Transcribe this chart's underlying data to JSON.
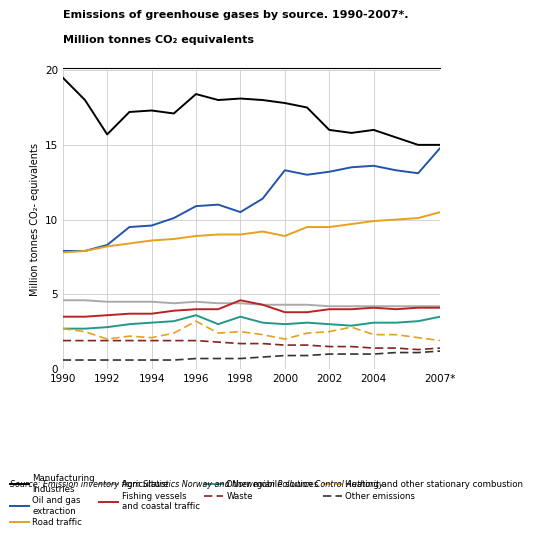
{
  "years": [
    1990,
    1991,
    1992,
    1993,
    1994,
    1995,
    1996,
    1997,
    1998,
    1999,
    2000,
    2001,
    2002,
    2003,
    2004,
    2005,
    2006,
    2007
  ],
  "manufacturing": [
    19.5,
    18.0,
    15.7,
    17.2,
    17.3,
    17.1,
    18.4,
    18.0,
    18.1,
    18.0,
    17.8,
    17.5,
    16.0,
    15.8,
    16.0,
    15.5,
    15.0,
    15.0
  ],
  "oil_gas": [
    7.9,
    7.9,
    8.3,
    9.5,
    9.6,
    10.1,
    10.9,
    11.0,
    10.5,
    11.4,
    13.3,
    13.0,
    13.2,
    13.5,
    13.6,
    13.3,
    13.1,
    14.8
  ],
  "road_traffic": [
    7.8,
    7.9,
    8.2,
    8.4,
    8.6,
    8.7,
    8.9,
    9.0,
    9.0,
    9.2,
    8.9,
    9.5,
    9.5,
    9.7,
    9.9,
    10.0,
    10.1,
    10.5
  ],
  "agriculture": [
    4.6,
    4.6,
    4.5,
    4.5,
    4.5,
    4.4,
    4.5,
    4.4,
    4.4,
    4.3,
    4.3,
    4.3,
    4.2,
    4.2,
    4.2,
    4.2,
    4.2,
    4.2
  ],
  "fishing": [
    3.5,
    3.5,
    3.6,
    3.7,
    3.7,
    3.9,
    4.0,
    4.0,
    4.6,
    4.3,
    3.8,
    3.8,
    4.0,
    4.0,
    4.1,
    4.0,
    4.1,
    4.1
  ],
  "other_mobile": [
    2.7,
    2.7,
    2.8,
    3.0,
    3.1,
    3.2,
    3.6,
    3.0,
    3.5,
    3.1,
    3.0,
    3.1,
    3.0,
    2.9,
    3.1,
    3.1,
    3.2,
    3.5
  ],
  "waste": [
    1.9,
    1.9,
    1.9,
    1.9,
    1.9,
    1.9,
    1.9,
    1.8,
    1.7,
    1.7,
    1.6,
    1.6,
    1.5,
    1.5,
    1.4,
    1.4,
    1.3,
    1.4
  ],
  "heating": [
    2.7,
    2.5,
    2.0,
    2.2,
    2.1,
    2.4,
    3.2,
    2.4,
    2.5,
    2.3,
    2.0,
    2.4,
    2.5,
    2.8,
    2.3,
    2.3,
    2.1,
    1.9
  ],
  "other_emissions": [
    0.6,
    0.6,
    0.6,
    0.6,
    0.6,
    0.6,
    0.7,
    0.7,
    0.7,
    0.8,
    0.9,
    0.9,
    1.0,
    1.0,
    1.0,
    1.1,
    1.1,
    1.2
  ],
  "title_line1": "Emissions of greenhouse gases by source. 1990-2007*.",
  "title_line2": "Million tonnes CO₂ equivalents",
  "ylabel": "Million tonnes CO₂- equivalents",
  "ylim": [
    0,
    20
  ],
  "yticks": [
    0,
    5,
    10,
    15,
    20
  ],
  "xticks": [
    1990,
    1992,
    1994,
    1996,
    1998,
    2000,
    2002,
    2004,
    2007
  ],
  "xticklabels": [
    "1990",
    "1992",
    "1994",
    "1996",
    "1998",
    "2000",
    "2002",
    "2004",
    "2007*"
  ],
  "source_text": "Source: Emission inventory from Statistics Norway and Norwegian Pollution Control Authority.",
  "color_manufacturing": "#000000",
  "color_oil_gas": "#2255aa",
  "color_road_traffic": "#e8a020",
  "color_agriculture": "#aaaaaa",
  "color_fishing": "#bb2222",
  "color_other_mobile": "#229988",
  "color_waste": "#882222",
  "color_heating": "#e8a020",
  "color_other_emissions": "#333333"
}
